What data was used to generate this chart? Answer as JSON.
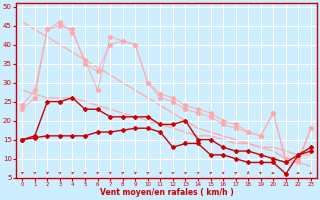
{
  "x": [
    0,
    1,
    2,
    3,
    4,
    5,
    6,
    7,
    8,
    9,
    10,
    11,
    12,
    13,
    14,
    15,
    16,
    17,
    18,
    19,
    20,
    21,
    22,
    23
  ],
  "line_dark1": [
    15,
    16,
    25,
    25,
    26,
    23,
    23,
    21,
    21,
    21,
    21,
    19,
    19,
    20,
    15,
    15,
    13,
    12,
    12,
    11,
    10,
    9,
    11,
    13
  ],
  "line_dark2": [
    15,
    15.5,
    16,
    16,
    16,
    16,
    17,
    17,
    17.5,
    18,
    18,
    17,
    13,
    14,
    14,
    11,
    11,
    10,
    9,
    9,
    9,
    6,
    11,
    12
  ],
  "line_light1": [
    46,
    44,
    42,
    40,
    38,
    36,
    34,
    32,
    30,
    28,
    26,
    24,
    22,
    20,
    18,
    17,
    16,
    15,
    14,
    13,
    12,
    10,
    9,
    8
  ],
  "line_light2": [
    28,
    27,
    26,
    26,
    26,
    25,
    24,
    23,
    22,
    21,
    20,
    19,
    18,
    17,
    16,
    16,
    15,
    14,
    14,
    13,
    13,
    12,
    11,
    11
  ],
  "line_light_markers1": [
    24,
    28,
    44,
    46,
    43,
    36,
    28,
    42,
    41,
    40,
    30,
    26,
    25,
    23,
    22,
    21,
    19,
    18,
    17,
    16,
    22,
    9,
    9,
    18
  ],
  "line_light_markers2": [
    23,
    26,
    44,
    45,
    44,
    35,
    33,
    40,
    41,
    40,
    30,
    27,
    26,
    24,
    23,
    22,
    20,
    19,
    17,
    16,
    22,
    10,
    10,
    18
  ],
  "xlim": [
    -0.5,
    23.5
  ],
  "ylim": [
    5,
    51
  ],
  "yticks": [
    5,
    10,
    15,
    20,
    25,
    30,
    35,
    40,
    45,
    50
  ],
  "xticks": [
    0,
    1,
    2,
    3,
    4,
    5,
    6,
    7,
    8,
    9,
    10,
    11,
    12,
    13,
    14,
    15,
    16,
    17,
    18,
    19,
    20,
    21,
    22,
    23
  ],
  "xlabel": "Vent moyen/en rafales ( km/h )",
  "bg_color": "#cceeff",
  "grid_color": "#ffffff",
  "dark_red": "#cc0000",
  "light_red": "#ffaaaa",
  "arrow_angles": [
    45,
    45,
    45,
    45,
    45,
    45,
    45,
    45,
    45,
    45,
    45,
    45,
    45,
    45,
    45,
    45,
    45,
    45,
    0,
    -45,
    -90,
    -90,
    -90,
    -135
  ]
}
